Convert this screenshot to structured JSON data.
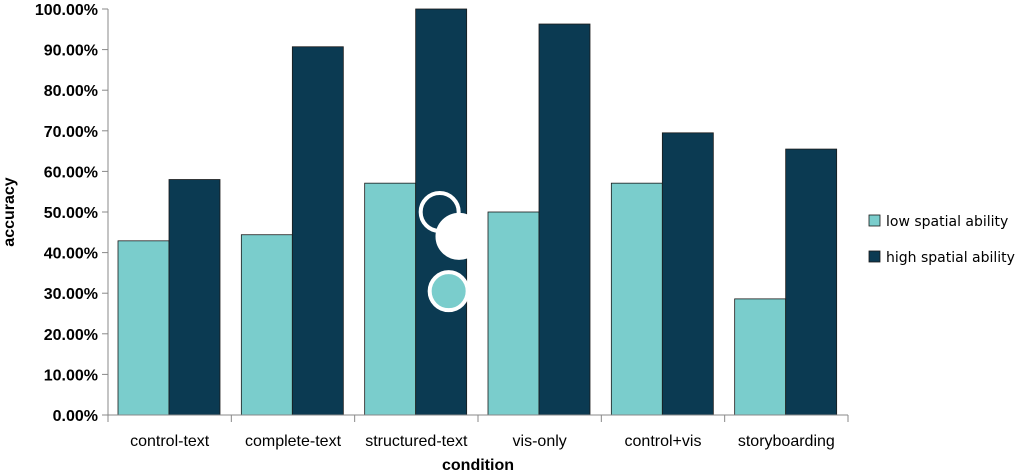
{
  "chart_data": {
    "type": "bar",
    "xlabel": "condition",
    "ylabel": "accuracy",
    "ylim": [
      0,
      100
    ],
    "ytick_step": 10,
    "ytick_labels": [
      "0.00%",
      "10.00%",
      "20.00%",
      "30.00%",
      "40.00%",
      "50.00%",
      "60.00%",
      "70.00%",
      "80.00%",
      "90.00%",
      "100.00%"
    ],
    "categories": [
      "control-text",
      "complete-text",
      "structured-text",
      "vis-only",
      "control+vis",
      "storyboarding"
    ],
    "series": [
      {
        "name": "low spatial ability",
        "color": "#7acdcc",
        "values": [
          42.9,
          44.4,
          57.1,
          50.0,
          57.1,
          28.6
        ]
      },
      {
        "name": "high spatial ability",
        "color": "#0b3a52",
        "values": [
          58.0,
          90.7,
          100.0,
          96.3,
          69.5,
          65.5
        ]
      }
    ],
    "legend_position": "right",
    "grid": false,
    "overlay_markers": [
      {
        "style": "ring",
        "category": "structured-text",
        "y": 50.0
      },
      {
        "style": "filled-teal",
        "category": "structured-text",
        "y": 30.5
      },
      {
        "style": "filled-white",
        "category": "vis-only",
        "y": 44.0
      }
    ]
  }
}
